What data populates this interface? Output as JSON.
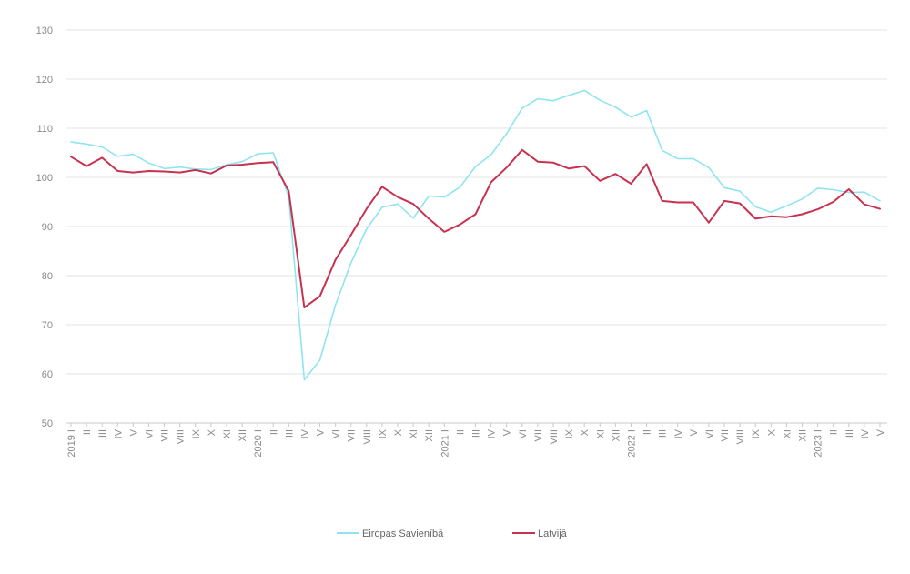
{
  "chart_data": {
    "type": "line",
    "title": "",
    "xlabel": "",
    "ylabel": "",
    "ylim": [
      50,
      130
    ],
    "yticks": [
      50,
      60,
      70,
      80,
      90,
      100,
      110,
      120,
      130
    ],
    "grid": true,
    "legend_position": "bottom-center",
    "categories": [
      "2019 I",
      "II",
      "III",
      "IV",
      "V",
      "VI",
      "VII",
      "VIII",
      "IX",
      "X",
      "XI",
      "XII",
      "2020 I",
      "II",
      "III",
      "IV",
      "V",
      "VI",
      "VII",
      "VIII",
      "IX",
      "X",
      "XI",
      "XII",
      "2021 I",
      "II",
      "III",
      "IV",
      "V",
      "VI",
      "VII",
      "VIII",
      "IX",
      "X",
      "XI",
      "XII",
      "2022 I",
      "II",
      "III",
      "IV",
      "V",
      "VI",
      "VII",
      "VIII",
      "IX",
      "X",
      "XI",
      "XII",
      "2023 I",
      "II",
      "III",
      "IV",
      "V"
    ],
    "series": [
      {
        "name": "Eiropas Savienībā",
        "color": "#8ee5ef",
        "values": [
          107.2,
          106.8,
          106.2,
          104.3,
          104.7,
          102.9,
          101.8,
          102.1,
          101.7,
          101.6,
          102.6,
          103.2,
          104.8,
          105.0,
          96.0,
          58.8,
          62.8,
          74.0,
          82.6,
          89.5,
          93.9,
          94.6,
          91.7,
          96.2,
          96.0,
          98.0,
          102.2,
          104.6,
          108.9,
          114.1,
          116.0,
          115.6,
          116.7,
          117.7,
          115.7,
          114.3,
          112.3,
          113.6,
          105.5,
          103.8,
          103.8,
          102.0,
          97.9,
          97.2,
          94.0,
          92.9,
          94.2,
          95.6,
          97.8,
          97.5,
          96.9,
          97.0,
          95.2
        ]
      },
      {
        "name": "Latvijā",
        "color": "#c8314f",
        "values": [
          104.2,
          102.3,
          104.0,
          101.3,
          101.0,
          101.3,
          101.2,
          101.0,
          101.5,
          100.8,
          102.4,
          102.6,
          102.9,
          103.1,
          97.2,
          73.5,
          75.8,
          83.2,
          88.3,
          93.6,
          98.1,
          96.0,
          94.6,
          91.6,
          88.9,
          90.4,
          92.5,
          99.0,
          102.0,
          105.6,
          103.2,
          103.0,
          101.8,
          102.3,
          99.3,
          100.7,
          98.7,
          102.7,
          95.2,
          94.9,
          94.9,
          90.8,
          95.2,
          94.7,
          91.6,
          92.1,
          91.9,
          92.5,
          93.5,
          95.0,
          97.6,
          94.5,
          93.6
        ]
      }
    ]
  }
}
